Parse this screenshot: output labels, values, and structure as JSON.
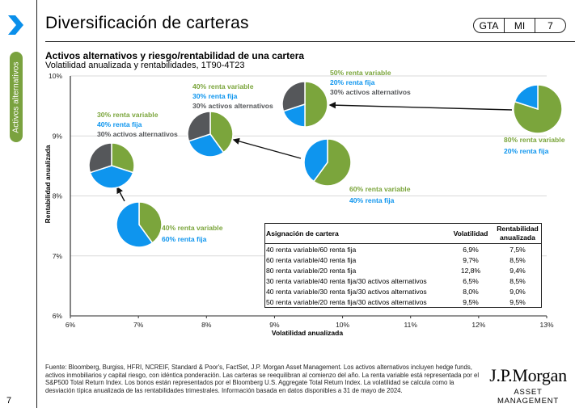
{
  "header": {
    "title": "Diversificación de carteras",
    "badge": [
      "GTA",
      "MI",
      "7"
    ]
  },
  "sidebar": {
    "section_label": "Activos alternativos",
    "page_number": "7"
  },
  "colors": {
    "equity": "#7ba53c",
    "fixed_income": "#0e95ee",
    "alternatives": "#55575a",
    "accent_chevron": "#0a8fea",
    "section_pill": "#7aa23f"
  },
  "chart_data": {
    "type": "scatter",
    "title": "Activos alternativos y riesgo/rentabilidad de una cartera",
    "subtitle": "Volatilidad anualizada y rentabilidades, 1T90-4T23",
    "xlabel": "Volatilidad anualizada",
    "ylabel": "Rentabilidad anualizada",
    "xlim": [
      6,
      13
    ],
    "ylim": [
      6,
      10
    ],
    "x_ticks": [
      "6%",
      "7%",
      "8%",
      "9%",
      "10%",
      "11%",
      "12%",
      "13%"
    ],
    "y_ticks": [
      "6%",
      "7%",
      "8%",
      "9%",
      "10%"
    ],
    "grid": "horizontal",
    "points": [
      {
        "id": "p40_60",
        "allocation": {
          "renta_variable": 40,
          "renta_fija": 60,
          "activos_alternativos": 0
        },
        "labels": [
          "40% renta variable",
          "60% renta fija"
        ],
        "volatility": 6.9,
        "return": 7.5
      },
      {
        "id": "p60_40",
        "allocation": {
          "renta_variable": 60,
          "renta_fija": 40,
          "activos_alternativos": 0
        },
        "labels": [
          "60% renta variable",
          "40% renta fija"
        ],
        "volatility": 9.7,
        "return": 8.5
      },
      {
        "id": "p80_20",
        "allocation": {
          "renta_variable": 80,
          "renta_fija": 20,
          "activos_alternativos": 0
        },
        "labels": [
          "80% renta variable",
          "20% renta fija"
        ],
        "volatility": 12.8,
        "return": 9.4
      },
      {
        "id": "p30_40_30",
        "allocation": {
          "renta_variable": 30,
          "renta_fija": 40,
          "activos_alternativos": 30
        },
        "labels": [
          "30% renta variable",
          "40% renta fija",
          "30% activos alternativos"
        ],
        "volatility": 6.5,
        "return": 8.5
      },
      {
        "id": "p40_30_30",
        "allocation": {
          "renta_variable": 40,
          "renta_fija": 30,
          "activos_alternativos": 30
        },
        "labels": [
          "40% renta variable",
          "30% renta fija",
          "30% activos alternativos"
        ],
        "volatility": 8.0,
        "return": 9.0
      },
      {
        "id": "p50_20_30",
        "allocation": {
          "renta_variable": 50,
          "renta_fija": 20,
          "activos_alternativos": 30
        },
        "labels": [
          "50% renta variable",
          "20% renta fija",
          "30% activos alternativos"
        ],
        "volatility": 9.5,
        "return": 9.5
      }
    ],
    "arrows": [
      {
        "from": "p40_60",
        "to": "p30_40_30"
      },
      {
        "from": "p60_40",
        "to": "p40_30_30"
      },
      {
        "from": "p80_20",
        "to": "p50_20_30"
      }
    ],
    "table": {
      "headers": [
        "Asignación de cartera",
        "Volatilidad",
        "Rentabilidad anualizada"
      ],
      "rows": [
        [
          "40 renta variable/60 renta fija",
          "6,9%",
          "7,5%"
        ],
        [
          "60 renta variable/40 renta fija",
          "9,7%",
          "8,5%"
        ],
        [
          "80 renta variable/20 renta fija",
          "12,8%",
          "9,4%"
        ],
        [
          "30 renta variable/40 renta fija/30 activos alternativos",
          "6,5%",
          "8,5%"
        ],
        [
          "40 renta variable/30 renta fija/30 activos alternativos",
          "8,0%",
          "9,0%"
        ],
        [
          "50 renta variable/20 renta fija/30 activos alternativos",
          "9,5%",
          "9,5%"
        ]
      ]
    }
  },
  "footnote": "Fuente: Bloomberg, Burgiss, HFRI, NCREIF, Standard & Poor's, FactSet, J.P. Morgan Asset Management. Los activos alternativos incluyen hedge funds, activos inmobiliarios y capital riesgo, con idéntica ponderación. Las carteras se reequilibran al comienzo del año. La renta variable está representada por el S&P500 Total Return Index. Los bonos están representados por el Bloomberg U.S. Aggregate Total Return Index. La volatilidad se calcula como la desviación típica anualizada de las rentabilidades trimestrales. Información basada en datos disponibles a 31 de mayo de 2024.",
  "logo": {
    "line1": "J.P.Morgan",
    "line2": "ASSET MANAGEMENT"
  }
}
